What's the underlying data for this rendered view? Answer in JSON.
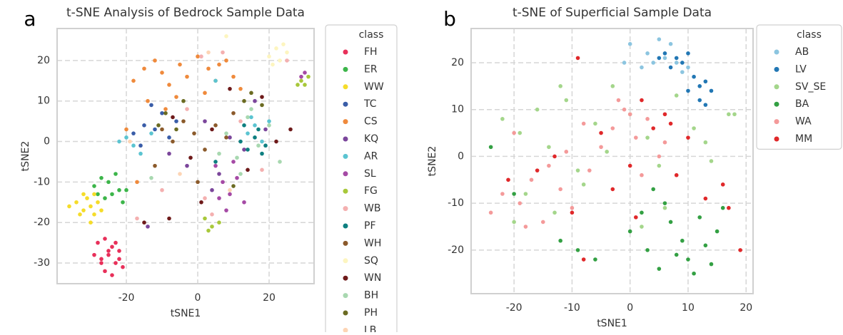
{
  "chart_data": [
    {
      "type": "scatter",
      "panel_label": "a",
      "title": "t-SNE Analysis of Bedrock Sample Data",
      "x_label": "tSNE1",
      "y_label": "tSNE2",
      "legend_title": "class",
      "legend": "outside right",
      "grid": true,
      "xlim": [
        -39.4,
        32.6
      ],
      "ylim": [
        -35.1,
        27.9
      ],
      "xticks": [
        -20,
        0,
        20
      ],
      "yticks": [
        20,
        10,
        0,
        -10,
        -20,
        -30
      ],
      "series": [
        {
          "name": "FH",
          "color": "#e8305a",
          "x": [
            -28,
            -26,
            -24,
            -22,
            -27,
            -25,
            -23,
            -21,
            -29,
            -26,
            -24,
            -22,
            -25,
            -27,
            -23
          ],
          "y": [
            -25,
            -24,
            -26,
            -27,
            -29,
            -28,
            -30,
            -31,
            -28,
            -32,
            -33,
            -29,
            -27,
            -30,
            -25
          ]
        },
        {
          "name": "ER",
          "color": "#3cb54a",
          "x": [
            -29,
            -27,
            -25,
            -23,
            -22,
            -26,
            -24,
            -21,
            -28,
            -20
          ],
          "y": [
            -11,
            -9,
            -10,
            -8,
            -12,
            -14,
            -13,
            -15,
            -13,
            -12
          ]
        },
        {
          "name": "WW",
          "color": "#f5dc2a",
          "x": [
            -36,
            -34,
            -32,
            -31,
            -30,
            -29,
            -28,
            -30,
            -27,
            -32,
            -33,
            -29
          ],
          "y": [
            -16,
            -15,
            -17,
            -14,
            -16,
            -18,
            -15,
            -20,
            -17,
            -13,
            -18,
            -13
          ]
        },
        {
          "name": "TC",
          "color": "#3a5da8",
          "x": [
            -18,
            -15,
            -12,
            -10,
            -8,
            -6,
            -13,
            -16
          ],
          "y": [
            2,
            4,
            3,
            7,
            1,
            5,
            9,
            -1
          ]
        },
        {
          "name": "CS",
          "color": "#ef8a3c",
          "x": [
            -18,
            -15,
            -12,
            -10,
            -8,
            -5,
            -3,
            0,
            3,
            5,
            8,
            10,
            -14,
            -6,
            2,
            12,
            -20,
            -9,
            -17,
            6
          ],
          "y": [
            15,
            18,
            20,
            17,
            14,
            19,
            16,
            21,
            18,
            15,
            20,
            16,
            10,
            11,
            12,
            13,
            3,
            8,
            -10,
            19
          ]
        },
        {
          "name": "KQ",
          "color": "#7b469b",
          "x": [
            -8,
            -3,
            2,
            6,
            9,
            13,
            16,
            19,
            -14,
            4
          ],
          "y": [
            -3,
            -6,
            5,
            -8,
            1,
            -2,
            10,
            3,
            -21,
            -12
          ]
        },
        {
          "name": "AR",
          "color": "#5bc4d1",
          "x": [
            -22,
            -20,
            -18,
            -16,
            -13,
            14,
            16,
            18,
            15,
            20,
            5
          ],
          "y": [
            0,
            1,
            -1,
            -3,
            2,
            2,
            4,
            0,
            6,
            5,
            15
          ]
        },
        {
          "name": "SL",
          "color": "#a54aa5",
          "x": [
            5,
            7,
            9,
            11,
            13,
            8,
            10,
            6,
            30,
            29
          ],
          "y": [
            -6,
            -10,
            -13,
            -9,
            -15,
            -17,
            -5,
            -14,
            17,
            16
          ]
        },
        {
          "name": "FG",
          "color": "#a8c83a",
          "x": [
            28,
            29,
            30,
            31,
            2,
            4,
            6,
            3
          ],
          "y": [
            14,
            15,
            14,
            16,
            -19,
            -21,
            -20,
            -22
          ]
        },
        {
          "name": "WB",
          "color": "#f4b0b0",
          "x": [
            -17,
            -10,
            -3,
            2,
            7,
            12,
            18,
            4,
            25,
            1
          ],
          "y": [
            -19,
            -12,
            8,
            -14,
            22,
            5,
            -7,
            -18,
            20,
            21
          ]
        },
        {
          "name": "PF",
          "color": "#0e7f80",
          "x": [
            12,
            14,
            16,
            18,
            13,
            17,
            19,
            5
          ],
          "y": [
            0,
            -2,
            1,
            -3,
            4,
            3,
            -1,
            -5
          ]
        },
        {
          "name": "WH",
          "color": "#8b5a2b",
          "x": [
            -10,
            -7,
            -4,
            -1,
            2,
            5,
            8,
            -12,
            0,
            10
          ],
          "y": [
            3,
            0,
            5,
            2,
            -2,
            4,
            1,
            -6,
            -10,
            7
          ]
        },
        {
          "name": "SQ",
          "color": "#fdf5c0",
          "x": [
            20,
            22,
            23,
            24,
            25,
            21,
            8
          ],
          "y": [
            21,
            23,
            20,
            24,
            22,
            19,
            26
          ]
        },
        {
          "name": "WN",
          "color": "#6e1a1a",
          "x": [
            -15,
            -7,
            -2,
            4,
            9,
            14,
            18,
            22,
            26,
            -8,
            1
          ],
          "y": [
            -20,
            6,
            -4,
            3,
            13,
            -7,
            11,
            0,
            3,
            -19,
            -15
          ]
        },
        {
          "name": "BH",
          "color": "#a8d8b0",
          "x": [
            8,
            11,
            14,
            17,
            20,
            12,
            15,
            23,
            -13,
            6
          ],
          "y": [
            2,
            -4,
            6,
            -1,
            4,
            -8,
            8,
            -5,
            -9,
            -3
          ]
        },
        {
          "name": "PH",
          "color": "#6b6b22",
          "x": [
            -11,
            -9,
            -6,
            13,
            15,
            18,
            10,
            -4
          ],
          "y": [
            4,
            7,
            3,
            10,
            12,
            9,
            -11,
            10
          ]
        },
        {
          "name": "LB",
          "color": "#fdd5b5",
          "x": [
            -19,
            3,
            9,
            -5
          ],
          "y": [
            0,
            22,
            -12,
            -8
          ]
        }
      ]
    },
    {
      "type": "scatter",
      "panel_label": "b",
      "title": "t-SNE of Superficial Sample Data",
      "x_label": "tSNE1",
      "y_label": "tSNE2",
      "legend_title": "class",
      "legend": "outside right",
      "grid": true,
      "xlim": [
        -27.4,
        21.2
      ],
      "ylim": [
        -29.3,
        27.3
      ],
      "xticks": [
        -20,
        -10,
        0,
        10,
        20
      ],
      "yticks": [
        20,
        10,
        0,
        -10,
        -20
      ],
      "series": [
        {
          "name": "AB",
          "color": "#8cc5e0",
          "x": [
            0,
            3,
            5,
            6,
            7,
            8,
            2,
            9,
            4,
            10,
            -1
          ],
          "y": [
            24,
            22,
            25,
            21,
            24,
            20,
            19,
            18,
            20,
            19,
            20
          ]
        },
        {
          "name": "LV",
          "color": "#2277b4",
          "x": [
            5,
            6,
            7,
            8,
            9,
            10,
            11,
            12,
            13,
            14,
            12,
            10,
            13
          ],
          "y": [
            21,
            22,
            19,
            21,
            20,
            22,
            17,
            15,
            16,
            14,
            12,
            14,
            11
          ]
        },
        {
          "name": "SV_SE",
          "color": "#a4d68b",
          "x": [
            -22,
            -19,
            -16,
            -14,
            -11,
            -9,
            -6,
            -3,
            0,
            3,
            5,
            8,
            11,
            14,
            17,
            -18,
            -13,
            -8,
            -4,
            2,
            6,
            13,
            18,
            -20,
            -12
          ],
          "y": [
            8,
            5,
            10,
            2,
            12,
            -3,
            7,
            15,
            9,
            4,
            -2,
            13,
            6,
            -1,
            9,
            -8,
            -12,
            -6,
            1,
            -15,
            -11,
            3,
            9,
            -14,
            15
          ]
        },
        {
          "name": "BA",
          "color": "#33a043",
          "x": [
            -24,
            -20,
            -12,
            -6,
            0,
            3,
            5,
            7,
            9,
            10,
            11,
            12,
            13,
            14,
            15,
            6,
            8,
            4,
            -9,
            16,
            2
          ],
          "y": [
            2,
            -8,
            -18,
            -22,
            -16,
            -20,
            -24,
            -14,
            -18,
            -22,
            -25,
            -13,
            -19,
            -23,
            -16,
            -10,
            -21,
            -7,
            -20,
            -11,
            -12
          ]
        },
        {
          "name": "WA",
          "color": "#f49a9a",
          "x": [
            -24,
            -22,
            -19,
            -17,
            -15,
            -12,
            -10,
            -7,
            -5,
            -3,
            -1,
            1,
            3,
            5,
            -20,
            -14,
            -8,
            -2,
            2,
            -18,
            -11,
            0,
            6
          ],
          "y": [
            -12,
            -8,
            -10,
            -5,
            -14,
            -7,
            -11,
            -3,
            2,
            6,
            10,
            4,
            8,
            0,
            5,
            -2,
            7,
            12,
            -4,
            -15,
            1,
            9,
            3
          ]
        },
        {
          "name": "MM",
          "color": "#e0282a",
          "x": [
            -21,
            -16,
            -13,
            -10,
            -8,
            -5,
            -3,
            0,
            2,
            4,
            6,
            8,
            10,
            13,
            16,
            19,
            -9,
            1,
            7,
            17
          ],
          "y": [
            -5,
            -3,
            0,
            -12,
            -22,
            5,
            -7,
            -2,
            12,
            6,
            9,
            -4,
            4,
            -9,
            -6,
            -20,
            21,
            -13,
            7,
            -11
          ]
        }
      ]
    }
  ]
}
